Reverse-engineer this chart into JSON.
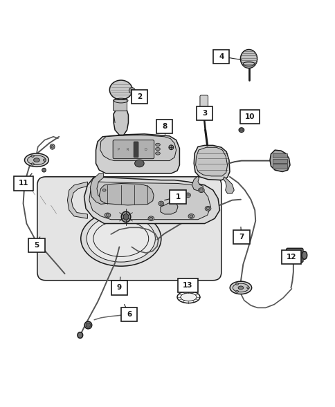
{
  "bg_color": "#ffffff",
  "fig_width": 4.85,
  "fig_height": 5.89,
  "dpi": 100,
  "ec": "#1a1a1a",
  "lw_main": 1.1,
  "lw_thin": 0.7,
  "lw_cable": 1.4,
  "fc_part": "#e8e8e8",
  "fc_dark": "#aaaaaa",
  "fc_white": "#ffffff",
  "label_positions": [
    {
      "num": "1",
      "bx": 0.53,
      "by": 0.52
    },
    {
      "num": "2",
      "bx": 0.415,
      "by": 0.82
    },
    {
      "num": "3",
      "bx": 0.61,
      "by": 0.77
    },
    {
      "num": "4",
      "bx": 0.66,
      "by": 0.94
    },
    {
      "num": "5",
      "bx": 0.108,
      "by": 0.375
    },
    {
      "num": "6",
      "bx": 0.385,
      "by": 0.168
    },
    {
      "num": "7",
      "bx": 0.72,
      "by": 0.4
    },
    {
      "num": "8",
      "bx": 0.49,
      "by": 0.73
    },
    {
      "num": "9",
      "bx": 0.355,
      "by": 0.248
    },
    {
      "num": "10",
      "bx": 0.745,
      "by": 0.76
    },
    {
      "num": "11",
      "bx": 0.068,
      "by": 0.56
    },
    {
      "num": "12",
      "bx": 0.87,
      "by": 0.34
    },
    {
      "num": "13",
      "bx": 0.56,
      "by": 0.255
    }
  ]
}
